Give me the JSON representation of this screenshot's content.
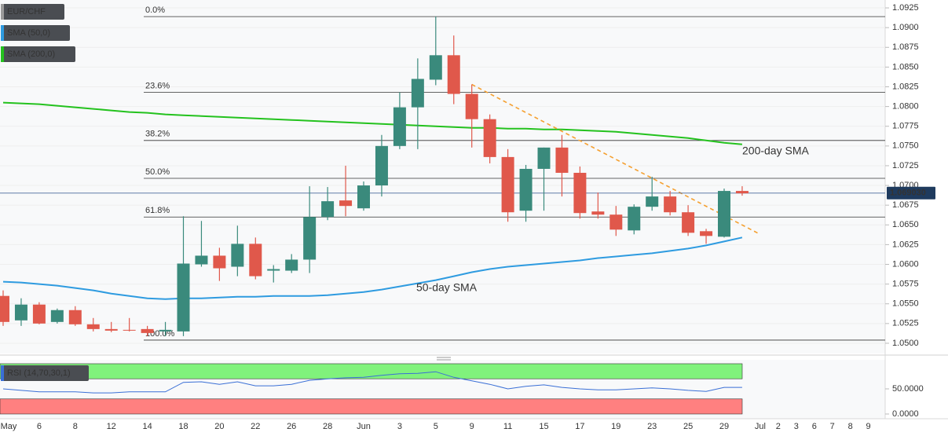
{
  "chart_data": [
    {
      "type": "candlestick",
      "symbol": "EUR/CHF",
      "categories": [
        "May",
        null,
        "6",
        null,
        "8",
        null,
        "12",
        null,
        "14",
        null,
        "18",
        null,
        "20",
        null,
        "22",
        null,
        "26",
        null,
        "28",
        null,
        "Jun",
        null,
        "3",
        null,
        "5",
        null,
        "9",
        null,
        "11",
        null,
        "15",
        null,
        "17",
        null,
        "19",
        null,
        "23",
        null,
        "25",
        null,
        "29",
        null,
        "Jul",
        "2",
        "3",
        "6",
        "7",
        "8",
        "9"
      ],
      "open": [
        1.056,
        1.0529,
        1.0549,
        1.0527,
        1.0542,
        1.0524,
        1.0518,
        1.0517,
        1.0518,
        1.0515,
        1.0515,
        1.06,
        1.0611,
        1.0597,
        1.0626,
        1.0592,
        1.0592,
        1.0606,
        1.066,
        1.0681,
        1.0671,
        1.07,
        1.075,
        1.0799,
        1.0834,
        1.0865,
        1.0816,
        1.0784,
        1.0736,
        1.0668,
        1.0721,
        1.0748,
        1.0716,
        1.0667,
        1.0663,
        1.0643,
        1.0673,
        1.0686,
        1.0666,
        1.0642,
        1.0635,
        1.0693,
        null,
        null,
        null,
        null,
        null,
        null,
        null
      ],
      "high": [
        1.0567,
        1.0557,
        1.0552,
        1.0544,
        1.0547,
        1.0532,
        1.0527,
        1.0532,
        1.0522,
        1.0527,
        1.0661,
        1.0655,
        1.0621,
        1.0649,
        1.0634,
        1.0599,
        1.0613,
        1.0699,
        1.0698,
        1.0725,
        1.0705,
        1.0764,
        1.0818,
        1.0861,
        1.0914,
        1.089,
        1.0828,
        1.079,
        1.0746,
        1.0726,
        1.0748,
        1.0764,
        1.0724,
        1.0691,
        1.0674,
        1.0676,
        1.0711,
        1.0693,
        1.0675,
        1.0645,
        1.0696,
        1.0699,
        null,
        null,
        null,
        null,
        null,
        null,
        null
      ],
      "low": [
        1.0522,
        1.0522,
        1.0524,
        1.0525,
        1.0522,
        1.0515,
        1.0514,
        1.0515,
        1.0509,
        1.0509,
        1.0509,
        1.0597,
        1.0579,
        1.0585,
        1.0581,
        1.0577,
        1.0589,
        1.0589,
        1.0656,
        1.0661,
        1.0668,
        1.0686,
        1.0746,
        1.0746,
        1.0827,
        1.0803,
        1.0748,
        1.0728,
        1.0654,
        1.0654,
        1.0668,
        1.0686,
        1.0658,
        1.0658,
        1.0636,
        1.0638,
        1.0668,
        1.0662,
        1.0636,
        1.0626,
        1.0634,
        1.0687,
        null,
        null,
        null,
        null,
        null,
        null,
        null
      ],
      "close": [
        1.0527,
        1.0549,
        1.0525,
        1.0542,
        1.0524,
        1.0518,
        1.0516,
        1.0516,
        1.0513,
        1.0517,
        1.0601,
        1.0611,
        1.0595,
        1.0626,
        1.0585,
        1.0594,
        1.0606,
        1.066,
        1.068,
        1.0674,
        1.07,
        1.075,
        1.0799,
        1.0835,
        1.0865,
        1.0816,
        1.0784,
        1.0736,
        1.0666,
        1.0721,
        1.0748,
        1.0716,
        1.0665,
        1.0663,
        1.0644,
        1.0673,
        1.0686,
        1.0666,
        1.064,
        1.0636,
        1.0693,
        1.069,
        null,
        null,
        null,
        null,
        null,
        null,
        null
      ],
      "up_color": "#3a8a7c",
      "down_color": "#e0584b",
      "ylim": [
        1.0487,
        1.0935
      ],
      "yticks": [
        {
          "value": 1.05,
          "label": "1.0500"
        },
        {
          "value": 1.0525,
          "label": "1.0525"
        },
        {
          "value": 1.055,
          "label": "1.0550"
        },
        {
          "value": 1.0575,
          "label": "1.0575"
        },
        {
          "value": 1.06,
          "label": "1.0600"
        },
        {
          "value": 1.0625,
          "label": "1.0625"
        },
        {
          "value": 1.065,
          "label": "1.0650"
        },
        {
          "value": 1.0675,
          "label": "1.0675"
        },
        {
          "value": 1.07,
          "label": "1.0700"
        },
        {
          "value": 1.0725,
          "label": "1.0725"
        },
        {
          "value": 1.075,
          "label": "1.0750"
        },
        {
          "value": 1.0775,
          "label": "1.0775"
        },
        {
          "value": 1.08,
          "label": "1.0800"
        },
        {
          "value": 1.0825,
          "label": "1.0825"
        },
        {
          "value": 1.085,
          "label": "1.0850"
        },
        {
          "value": 1.0875,
          "label": "1.0875"
        },
        {
          "value": 1.09,
          "label": "1.0900"
        },
        {
          "value": 1.0925,
          "label": "1.0925"
        }
      ],
      "grid": true,
      "last_price": {
        "value": 1.06903,
        "label": "1.069030"
      },
      "fib_levels": [
        {
          "label": "0.0%",
          "value": 1.0914
        },
        {
          "label": "23.6%",
          "value": 1.0818
        },
        {
          "label": "38.2%",
          "value": 1.0757
        },
        {
          "label": "50.0%",
          "value": 1.0709
        },
        {
          "label": "61.8%",
          "value": 1.066
        },
        {
          "label": "100.0%",
          "value": 1.0504
        }
      ],
      "trendline": {
        "color": "#f5a030",
        "values": [
          1.0828,
          1.0638
        ]
      },
      "overlays": [
        {
          "name": "SMA (50,0)",
          "label": "50-day SMA",
          "color": "#2e9be0",
          "values": [
            1.0578,
            1.0577,
            1.0575,
            1.0573,
            1.057,
            1.0567,
            1.0563,
            1.056,
            1.0557,
            1.0556,
            1.0557,
            1.0557,
            1.0558,
            1.0559,
            1.0559,
            1.056,
            1.056,
            1.056,
            1.0561,
            1.0563,
            1.0565,
            1.0568,
            1.0572,
            1.0576,
            1.058,
            1.0585,
            1.059,
            1.0594,
            1.0597,
            1.0599,
            1.0601,
            1.0603,
            1.0605,
            1.0608,
            1.061,
            1.0612,
            1.0614,
            1.0617,
            1.062,
            1.0624,
            1.0629,
            1.0634,
            null,
            null,
            null,
            null,
            null,
            null,
            null
          ]
        },
        {
          "name": "SMA (200,0)",
          "label": "200-day SMA",
          "color": "#24c21e",
          "values": [
            1.0805,
            1.0804,
            1.0803,
            1.0801,
            1.0799,
            1.0797,
            1.0795,
            1.0793,
            1.0792,
            1.079,
            1.0789,
            1.0788,
            1.0787,
            1.0786,
            1.0785,
            1.0784,
            1.0783,
            1.0782,
            1.0781,
            1.078,
            1.0779,
            1.0778,
            1.0777,
            1.0776,
            1.0775,
            1.0774,
            1.0773,
            1.0773,
            1.0772,
            1.0772,
            1.0771,
            1.0771,
            1.077,
            1.0769,
            1.0768,
            1.0766,
            1.0764,
            1.0762,
            1.076,
            1.0757,
            1.0754,
            1.0752,
            null,
            null,
            null,
            null,
            null,
            null,
            null
          ]
        }
      ]
    },
    {
      "type": "line",
      "name": "RSI (14,70,30,1)",
      "color": "#3a6fd6",
      "values": [
        50,
        47,
        44,
        44,
        44,
        42,
        42,
        44,
        44,
        44,
        63,
        64,
        59,
        64,
        56,
        56,
        59,
        67,
        70,
        72,
        73,
        77,
        80,
        81,
        84,
        73,
        66,
        59,
        50,
        55,
        58,
        53,
        50,
        48,
        48,
        50,
        52,
        50,
        47,
        45,
        53,
        53,
        null,
        null,
        null,
        null,
        null,
        null,
        null
      ],
      "ylim": [
        -9.4,
        107.8
      ],
      "yticks": [
        {
          "value": 0,
          "label": "0.0000"
        },
        {
          "value": 50,
          "label": "50.0000"
        }
      ],
      "bands": [
        {
          "range": [
            70,
            100
          ],
          "color": "#80f27c"
        },
        {
          "range": [
            0,
            30
          ],
          "color": "#ff8080"
        }
      ]
    }
  ]
}
